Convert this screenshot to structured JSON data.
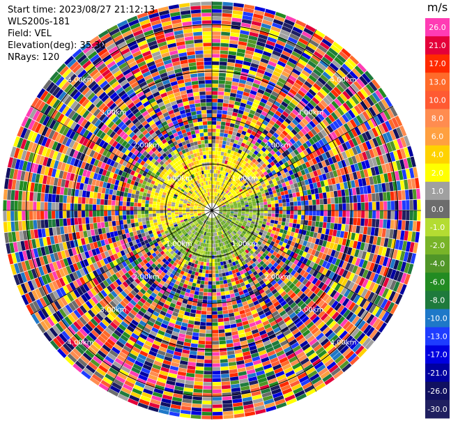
{
  "header": {
    "start_time": "Start time: 2023/08/27 21:12:13",
    "instrument": "WLS200s-181",
    "field": "Field: VEL",
    "elevation": "Elevation(deg): 35.30",
    "nrays": "NRays: 120"
  },
  "chart_data": {
    "type": "heatmap",
    "projection": "polar-ppi",
    "field": "VEL",
    "unit": "m/s",
    "nrays": 120,
    "range_rings_km": [
      1.0,
      2.0,
      3.0,
      4.0
    ],
    "range_ring_labels": [
      "1.00km",
      "2.00km",
      "3.00km",
      "4.00km"
    ],
    "max_range_km": 4.5,
    "colorbar": {
      "unit": "m/s",
      "tick_labels": [
        "26.0",
        "21.0",
        "17.0",
        "13.0",
        "10.0",
        "8.0",
        "6.0",
        "4.0",
        "2.0",
        "1.0",
        "0.0",
        "-1.0",
        "-2.0",
        "-4.0",
        "-6.0",
        "-8.0",
        "-10.0",
        "-13.0",
        "-17.0",
        "-21.0",
        "-26.0",
        "-30.0"
      ],
      "colors": [
        "#ff3cb4",
        "#e4003a",
        "#ff2a00",
        "#ff6a2a",
        "#ff5a32",
        "#ff8c50",
        "#ffa040",
        "#ffd200",
        "#ffff00",
        "#a0a0a0",
        "#6c6c6c",
        "#b4dc32",
        "#78b428",
        "#509628",
        "#228b22",
        "#1e7a3c",
        "#1e78c8",
        "#1e3cff",
        "#0000e0",
        "#0000a0",
        "#101060",
        "#202060"
      ]
    },
    "near_field": {
      "description_note": "inner ranges show low velocities: yellow (1-4 m/s) north/west, green (-1 to -4 m/s) south/east"
    }
  }
}
